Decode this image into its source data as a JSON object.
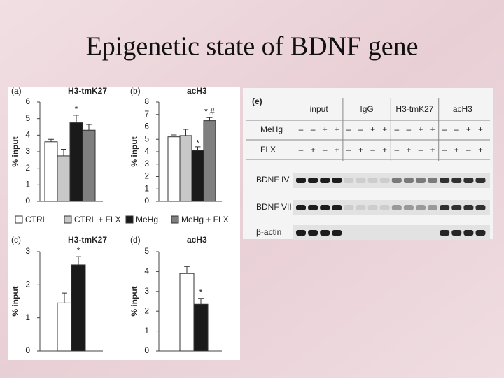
{
  "slide_title": "Epigenetic state of BDNF gene",
  "legend": [
    {
      "name": "CTRL",
      "color": "#ffffff"
    },
    {
      "name": "CTRL + FLX",
      "color": "#c8c8c8"
    },
    {
      "name": "MeHg",
      "color": "#1a1a1a"
    },
    {
      "name": "MeHg + FLX",
      "color": "#7f7f7f"
    }
  ],
  "chart_data": [
    {
      "type": "bar",
      "panel": "(a)",
      "title": "H3-tmK27",
      "y_label": "% input",
      "categories": [
        null,
        null,
        null,
        null
      ],
      "values": [
        3.6,
        2.75,
        4.75,
        4.3
      ],
      "errors": [
        0.15,
        0.4,
        0.45,
        0.35
      ],
      "colors": [
        "#ffffff",
        "#c8c8c8",
        "#1a1a1a",
        "#7f7f7f"
      ],
      "value_annotations": [
        null,
        null,
        "*",
        null
      ],
      "ylim": [
        0,
        6
      ],
      "yticks": [
        0,
        1,
        2,
        3,
        4,
        5,
        6
      ]
    },
    {
      "type": "bar",
      "panel": "(b)",
      "title": "acH3",
      "y_label": "% input",
      "categories": [
        null,
        null,
        null,
        null
      ],
      "values": [
        5.2,
        5.3,
        4.1,
        6.5
      ],
      "errors": [
        0.15,
        0.5,
        0.3,
        0.25
      ],
      "colors": [
        "#ffffff",
        "#c8c8c8",
        "#1a1a1a",
        "#7f7f7f"
      ],
      "value_annotations": [
        null,
        null,
        "*",
        "*,#"
      ],
      "ylim": [
        0,
        8
      ],
      "yticks": [
        0,
        1,
        2,
        3,
        4,
        5,
        6,
        7,
        8
      ]
    },
    {
      "type": "bar",
      "panel": "(c)",
      "title": "H3-tmK27",
      "y_label": "% input",
      "categories": [
        null,
        null
      ],
      "values": [
        1.45,
        2.6
      ],
      "errors": [
        0.3,
        0.25
      ],
      "colors": [
        "#ffffff",
        "#1a1a1a"
      ],
      "value_annotations": [
        null,
        "*"
      ],
      "ylim": [
        0,
        3
      ],
      "yticks": [
        0,
        1,
        2,
        3
      ]
    },
    {
      "type": "bar",
      "panel": "(d)",
      "title": "acH3",
      "y_label": "% input",
      "categories": [
        null,
        null
      ],
      "values": [
        3.9,
        2.35
      ],
      "errors": [
        0.35,
        0.3
      ],
      "colors": [
        "#ffffff",
        "#1a1a1a"
      ],
      "value_annotations": [
        null,
        "*"
      ],
      "ylim": [
        0,
        5
      ],
      "yticks": [
        0,
        1,
        2,
        3,
        4,
        5
      ]
    }
  ],
  "gel": {
    "panel": "(e)",
    "groups": [
      "input",
      "IgG",
      "H3-tmK27",
      "acH3"
    ],
    "rows": [
      {
        "name": "MeHg",
        "signs": [
          "–",
          "–",
          "+",
          "+",
          "–",
          "–",
          "+",
          "+",
          "–",
          "–",
          "+",
          "+",
          "–",
          "–",
          "+",
          "+"
        ]
      },
      {
        "name": "FLX",
        "signs": [
          "–",
          "+",
          "–",
          "+",
          "–",
          "+",
          "–",
          "+",
          "–",
          "+",
          "–",
          "+",
          "–",
          "+",
          "–",
          "+"
        ]
      }
    ],
    "bands": [
      "BDNF IV",
      "BDNF VII",
      "β-actin"
    ]
  }
}
